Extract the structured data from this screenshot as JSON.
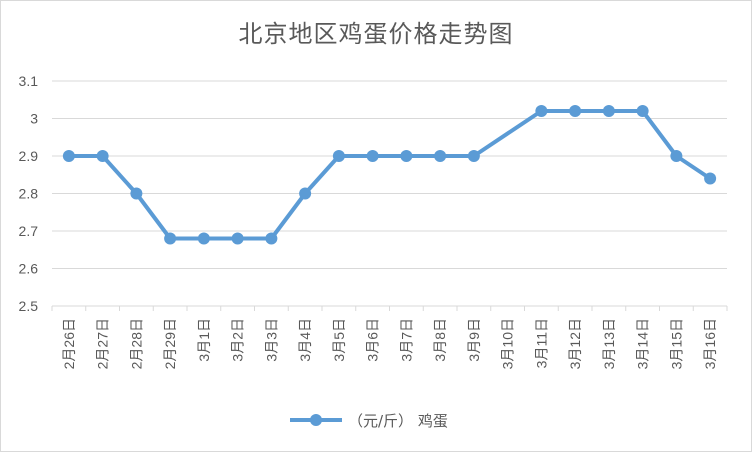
{
  "chart_data": {
    "type": "line",
    "title": "北京地区鸡蛋价格走势图",
    "xlabel": "",
    "ylabel": "",
    "categories": [
      "2月26日",
      "2月27日",
      "2月28日",
      "2月29日",
      "3月1日",
      "3月2日",
      "3月3日",
      "3月4日",
      "3月5日",
      "3月6日",
      "3月7日",
      "3月8日",
      "3月9日",
      "3月10日",
      "3月11日",
      "3月12日",
      "3月13日",
      "3月14日",
      "3月15日",
      "3月16日"
    ],
    "series": [
      {
        "name": "（元/斤） 鸡蛋",
        "values": [
          2.9,
          2.9,
          2.8,
          2.68,
          2.68,
          2.68,
          2.68,
          2.8,
          2.9,
          2.9,
          2.9,
          2.9,
          2.9,
          null,
          3.02,
          3.02,
          3.02,
          3.02,
          2.9,
          2.84
        ],
        "color": "#5b9bd5"
      }
    ],
    "ylim": [
      2.5,
      3.1
    ],
    "yticks": [
      "2.5",
      "2.6",
      "2.7",
      "2.8",
      "2.9",
      "3",
      "3.1"
    ],
    "grid": true,
    "legend_position": "bottom"
  }
}
